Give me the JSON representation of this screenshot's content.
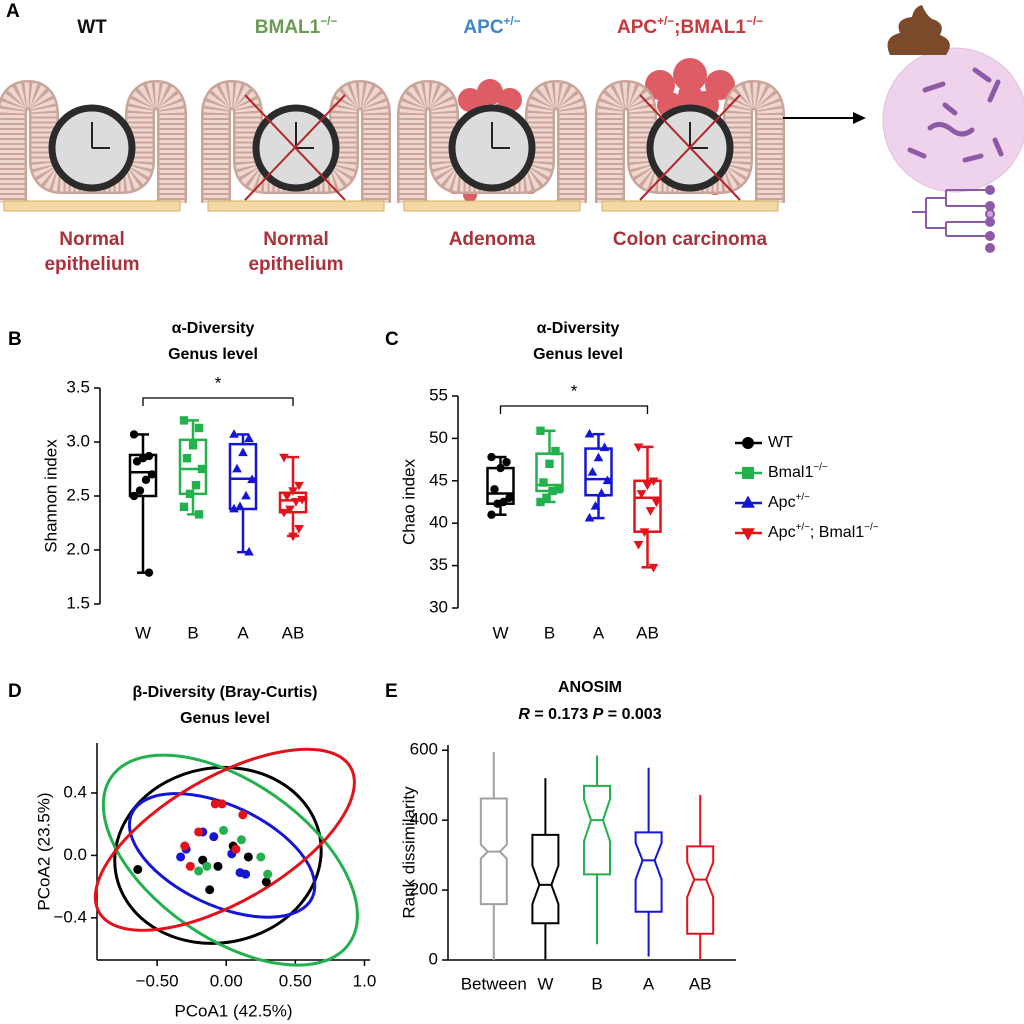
{
  "panel_a": {
    "panel": "A",
    "outcome_color": "#a8323a",
    "columns": [
      {
        "genotype": [
          {
            "text": "WT"
          }
        ],
        "color": "#111111",
        "outcome": [
          "Normal",
          "epithelium"
        ]
      },
      {
        "genotype": [
          {
            "text": "BMAL1"
          },
          {
            "text": "−/−",
            "sup": true
          }
        ],
        "color": "#6b9a55",
        "outcome": [
          "Normal",
          "epithelium"
        ]
      },
      {
        "genotype": [
          {
            "text": "APC"
          },
          {
            "text": "+/−",
            "sup": true
          }
        ],
        "color": "#3f86c8",
        "outcome": [
          "Adenoma"
        ]
      },
      {
        "genotype": [
          {
            "text": "APC"
          },
          {
            "text": "+/−",
            "sup": true
          },
          {
            "text": ";BMAL1"
          },
          {
            "text": "−/−",
            "sup": true
          }
        ],
        "color": "#c9383a",
        "outcome": [
          "Colon carcinoma"
        ]
      }
    ]
  },
  "legend": {
    "entries": [
      {
        "name": [
          {
            "text": "WT"
          }
        ],
        "color": "#000000",
        "marker": "circle"
      },
      {
        "name": [
          {
            "text": "Bmal1"
          },
          {
            "text": "−/−",
            "sup": true
          }
        ],
        "color": "#22b14c",
        "marker": "square"
      },
      {
        "name": [
          {
            "text": "Apc"
          },
          {
            "text": "+/−",
            "sup": true
          }
        ],
        "color": "#1515d6",
        "marker": "triangle"
      },
      {
        "name": [
          {
            "text": "Apc"
          },
          {
            "text": "+/−",
            "sup": true
          },
          {
            "text": "; Bmal1"
          },
          {
            "text": "−/−",
            "sup": true
          }
        ],
        "color": "#e3121b",
        "marker": "triangle-down"
      }
    ]
  },
  "chart_data": [
    {
      "panel": "B",
      "type": "box",
      "title": [
        "α-Diversity",
        "Genus level"
      ],
      "y_label": "Shannon index",
      "ylim": [
        1.5,
        3.5
      ],
      "yticks": [
        1.5,
        {
          "value": 2,
          "label": "2.0"
        },
        2.5,
        {
          "value": 3,
          "label": "3.0"
        },
        3.5
      ],
      "categories": [
        "W",
        "B",
        "A",
        "AB"
      ],
      "groups": [
        {
          "color": "#000000",
          "marker": "circle",
          "min": 1.79,
          "q1": 2.5,
          "median": 2.72,
          "q3": 2.88,
          "max": 3.07,
          "points": [
            3.07,
            2.87,
            2.85,
            2.82,
            2.7,
            2.65,
            2.55,
            2.5,
            1.79
          ]
        },
        {
          "color": "#22b14c",
          "marker": "square",
          "min": 2.33,
          "q1": 2.52,
          "median": 2.75,
          "q3": 3.02,
          "max": 3.2,
          "points": [
            3.2,
            3.13,
            2.97,
            2.85,
            2.75,
            2.6,
            2.52,
            2.4,
            2.33
          ]
        },
        {
          "color": "#1515d6",
          "marker": "triangle",
          "min": 1.98,
          "q1": 2.38,
          "median": 2.66,
          "q3": 2.98,
          "max": 3.07,
          "points": [
            3.07,
            3.03,
            2.9,
            2.75,
            2.65,
            2.5,
            2.4,
            2.38,
            1.98
          ]
        },
        {
          "color": "#e3121b",
          "marker": "triangle-down",
          "min": 2.13,
          "q1": 2.35,
          "median": 2.46,
          "q3": 2.53,
          "max": 2.86,
          "points": [
            2.86,
            2.6,
            2.55,
            2.5,
            2.47,
            2.45,
            2.38,
            2.35,
            2.2,
            2.13
          ]
        }
      ],
      "annotations": [
        {
          "text": "*",
          "between": [
            0,
            3
          ]
        }
      ]
    },
    {
      "panel": "C",
      "type": "box",
      "title": [
        "α-Diversity",
        "Genus level"
      ],
      "y_label": "Chao index",
      "ylim": [
        30,
        55
      ],
      "yticks": [
        30,
        35,
        40,
        45,
        50,
        55
      ],
      "categories": [
        "W",
        "B",
        "A",
        "AB"
      ],
      "groups": [
        {
          "color": "#000000",
          "marker": "circle",
          "min": 41,
          "q1": 42.3,
          "median": 43.5,
          "q3": 46.5,
          "max": 47.8,
          "points": [
            47.8,
            47.2,
            46.5,
            44,
            43,
            42.5,
            42.3,
            41
          ]
        },
        {
          "color": "#22b14c",
          "marker": "square",
          "min": 42.5,
          "q1": 43.8,
          "median": 44.5,
          "q3": 48.2,
          "max": 50.9,
          "points": [
            50.9,
            48.5,
            47,
            44.8,
            44,
            43.8,
            43,
            42.5
          ]
        },
        {
          "color": "#1515d6",
          "marker": "triangle",
          "min": 40.6,
          "q1": 43.3,
          "median": 45.2,
          "q3": 48.8,
          "max": 50.5,
          "points": [
            50.5,
            48.9,
            47.7,
            46,
            45,
            43.5,
            42,
            40.6
          ]
        },
        {
          "color": "#e3121b",
          "marker": "triangle-down",
          "min": 34.8,
          "q1": 39,
          "median": 43,
          "q3": 45,
          "max": 49,
          "points": [
            49,
            45,
            44.5,
            43.5,
            42.5,
            41.5,
            39,
            37.5,
            34.8
          ]
        }
      ],
      "annotations": [
        {
          "text": "*",
          "between": [
            0,
            3
          ]
        }
      ]
    },
    {
      "panel": "D",
      "type": "scatter",
      "title": [
        "β-Diversity (Bray-Curtis)",
        "Genus level"
      ],
      "x_label": "PCoA1 (42.5%)",
      "y_label": "PCoA2 (23.5%)",
      "xlim": [
        -0.935,
        1.04
      ],
      "ylim": [
        -0.67,
        0.72
      ],
      "xticks": [
        {
          "value": -0.5,
          "label": "−0.50"
        },
        {
          "value": 0,
          "label": "0.00"
        },
        {
          "value": 0.5,
          "label": "0.50"
        },
        {
          "value": 1,
          "label": "1.0"
        }
      ],
      "yticks": [
        {
          "value": -0.4,
          "label": "−0.4"
        },
        {
          "value": 0,
          "label": "0.0"
        },
        0.4
      ],
      "series": [
        {
          "color": "#000000",
          "x": [
            -0.64,
            -0.12,
            -0.06,
            0.05,
            0.16,
            0.29,
            -0.17
          ],
          "y": [
            -0.09,
            -0.22,
            -0.07,
            0.06,
            -0.01,
            -0.17,
            -0.03
          ],
          "ellipse": {
            "cx": -0.06,
            "cy": 0,
            "rx": 0.75,
            "ry": 0.56,
            "angle": -10
          }
        },
        {
          "color": "#22b14c",
          "x": [
            -0.02,
            0.25,
            0.3,
            -0.14,
            -0.2,
            0.11
          ],
          "y": [
            0.16,
            -0.01,
            -0.12,
            -0.07,
            -0.1,
            0.1
          ],
          "ellipse": {
            "cx": 0.03,
            "cy": -0.03,
            "rx": 1.05,
            "ry": 0.5,
            "angle": 35
          }
        },
        {
          "color": "#1515d6",
          "x": [
            -0.17,
            -0.29,
            -0.09,
            0.04,
            0.14,
            0.1,
            -0.33
          ],
          "y": [
            0.15,
            0.04,
            0.12,
            0.01,
            -0.12,
            -0.11,
            -0.01
          ],
          "ellipse": {
            "cx": -0.03,
            "cy": 0,
            "rx": 0.72,
            "ry": 0.32,
            "angle": 25
          }
        },
        {
          "color": "#e3121b",
          "x": [
            -0.08,
            -0.03,
            0.12,
            -0.2,
            -0.3,
            -0.26,
            0.07
          ],
          "y": [
            0.33,
            0.33,
            0.26,
            0.15,
            0.06,
            -0.07,
            0.04
          ],
          "ellipse": {
            "cx": -0.01,
            "cy": 0.1,
            "rx": 1.05,
            "ry": 0.4,
            "angle": -30
          }
        }
      ]
    },
    {
      "panel": "E",
      "type": "notched_box",
      "title": [
        "ANOSIM"
      ],
      "subtitle": [
        {
          "text": "R",
          "italic": true
        },
        {
          "text": " = 0.173 "
        },
        {
          "text": "P",
          "italic": true
        },
        {
          "text": " = 0.003"
        }
      ],
      "y_label": "Rank dissimilarity",
      "ylim": [
        0,
        615
      ],
      "yticks": [
        0,
        200,
        400,
        600
      ],
      "categories": [
        "Between",
        "W",
        "B",
        "A",
        "AB"
      ],
      "groups": [
        {
          "color": "#a0a0a0",
          "min": 0,
          "q1": 160,
          "median": 310,
          "q3": 462,
          "max": 595,
          "notch_low": 290,
          "notch_high": 330
        },
        {
          "color": "#000000",
          "min": 0,
          "q1": 105,
          "median": 215,
          "q3": 358,
          "max": 520,
          "notch_low": 160,
          "notch_high": 270
        },
        {
          "color": "#22b14c",
          "min": 45,
          "q1": 245,
          "median": 400,
          "q3": 498,
          "max": 585,
          "notch_low": 340,
          "notch_high": 460
        },
        {
          "color": "#1515d6",
          "min": 10,
          "q1": 138,
          "median": 285,
          "q3": 365,
          "max": 550,
          "notch_low": 230,
          "notch_high": 335
        },
        {
          "color": "#e3121b",
          "min": 0,
          "q1": 75,
          "median": 230,
          "q3": 325,
          "max": 472,
          "notch_low": 180,
          "notch_high": 280
        }
      ]
    }
  ]
}
